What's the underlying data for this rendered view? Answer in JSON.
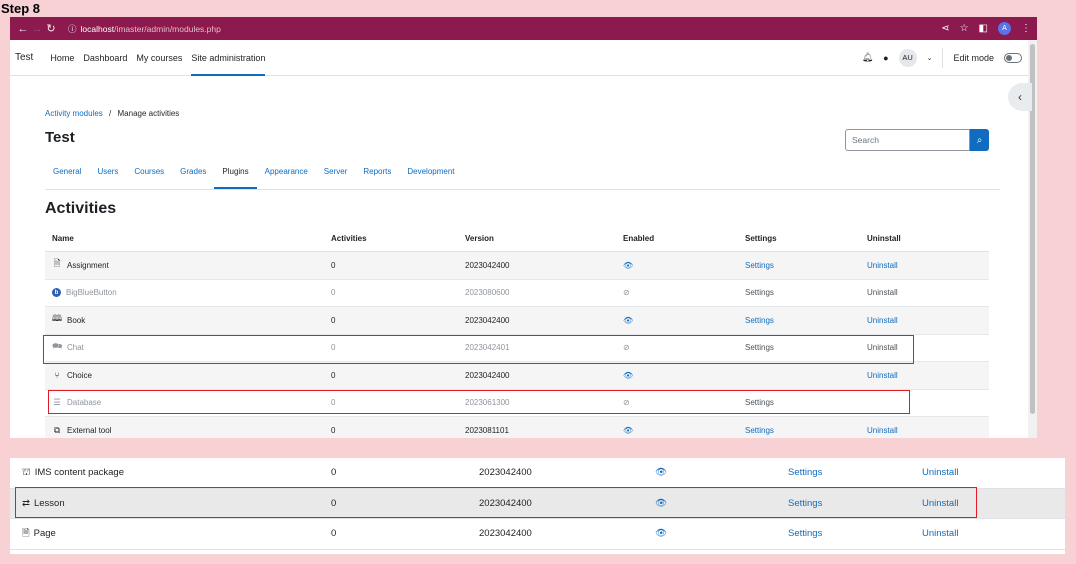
{
  "step_label": "Step 8",
  "browser": {
    "url_host": "localhost",
    "url_path": "/imaster/admin/modules.php",
    "profile_initial": "A"
  },
  "topnav": {
    "site_name": "Test",
    "items": [
      "Home",
      "Dashboard",
      "My courses",
      "Site administration"
    ],
    "user_initials": "AU",
    "edit_mode_label": "Edit mode"
  },
  "breadcrumb": {
    "parent": "Activity modules",
    "separator": "/",
    "current": "Manage activities"
  },
  "page_title": "Test",
  "search": {
    "placeholder": "Search"
  },
  "tabs": [
    "General",
    "Users",
    "Courses",
    "Grades",
    "Plugins",
    "Appearance",
    "Server",
    "Reports",
    "Development"
  ],
  "section_title": "Activities",
  "columns": [
    "Name",
    "Activities",
    "Version",
    "Enabled",
    "Settings",
    "Uninstall"
  ],
  "rows": [
    {
      "name": "Assignment",
      "activities": "0",
      "version": "2023042400",
      "settings": "Settings",
      "uninstall": "Uninstall",
      "icon": "assignment-icon",
      "glyph": "🗎"
    },
    {
      "name": "BigBlueButton",
      "activities": "0",
      "version": "2023080600",
      "settings": "Settings",
      "uninstall": "Uninstall",
      "icon": "bigbluebutton-icon",
      "glyph": "b"
    },
    {
      "name": "Book",
      "activities": "0",
      "version": "2023042400",
      "settings": "Settings",
      "uninstall": "Uninstall",
      "icon": "book-icon",
      "glyph": "🕮"
    },
    {
      "name": "Chat",
      "activities": "0",
      "version": "2023042401",
      "settings": "Settings",
      "uninstall": "Uninstall",
      "icon": "chat-icon",
      "glyph": "🗪"
    },
    {
      "name": "Choice",
      "activities": "0",
      "version": "2023042400",
      "settings": "",
      "uninstall": "Uninstall",
      "icon": "choice-icon",
      "glyph": "⑂"
    },
    {
      "name": "Database",
      "activities": "0",
      "version": "2023061300",
      "settings": "Settings",
      "uninstall": "",
      "icon": "database-icon",
      "glyph": "☰"
    },
    {
      "name": "External tool",
      "activities": "0",
      "version": "2023081101",
      "settings": "Settings",
      "uninstall": "Uninstall",
      "icon": "external-tool-icon",
      "glyph": "⧉"
    }
  ],
  "rows_lower": [
    {
      "name": "IMS content package",
      "activities": "0",
      "version": "2023042400",
      "settings": "Settings",
      "uninstall": "Uninstall",
      "icon": "ims-package-icon",
      "glyph": "⛫"
    },
    {
      "name": "Lesson",
      "activities": "0",
      "version": "2023042400",
      "settings": "Settings",
      "uninstall": "Uninstall",
      "icon": "lesson-icon",
      "glyph": "⇄"
    },
    {
      "name": "Page",
      "activities": "0",
      "version": "2023042400",
      "settings": "Settings",
      "uninstall": "Uninstall",
      "icon": "page-icon",
      "glyph": "🗎"
    }
  ],
  "colors": {
    "browser_bar": "#8c1a4e",
    "link": "#0f6cbf",
    "highlight": "#e01b24",
    "page_bg": "#f7d1d4"
  }
}
